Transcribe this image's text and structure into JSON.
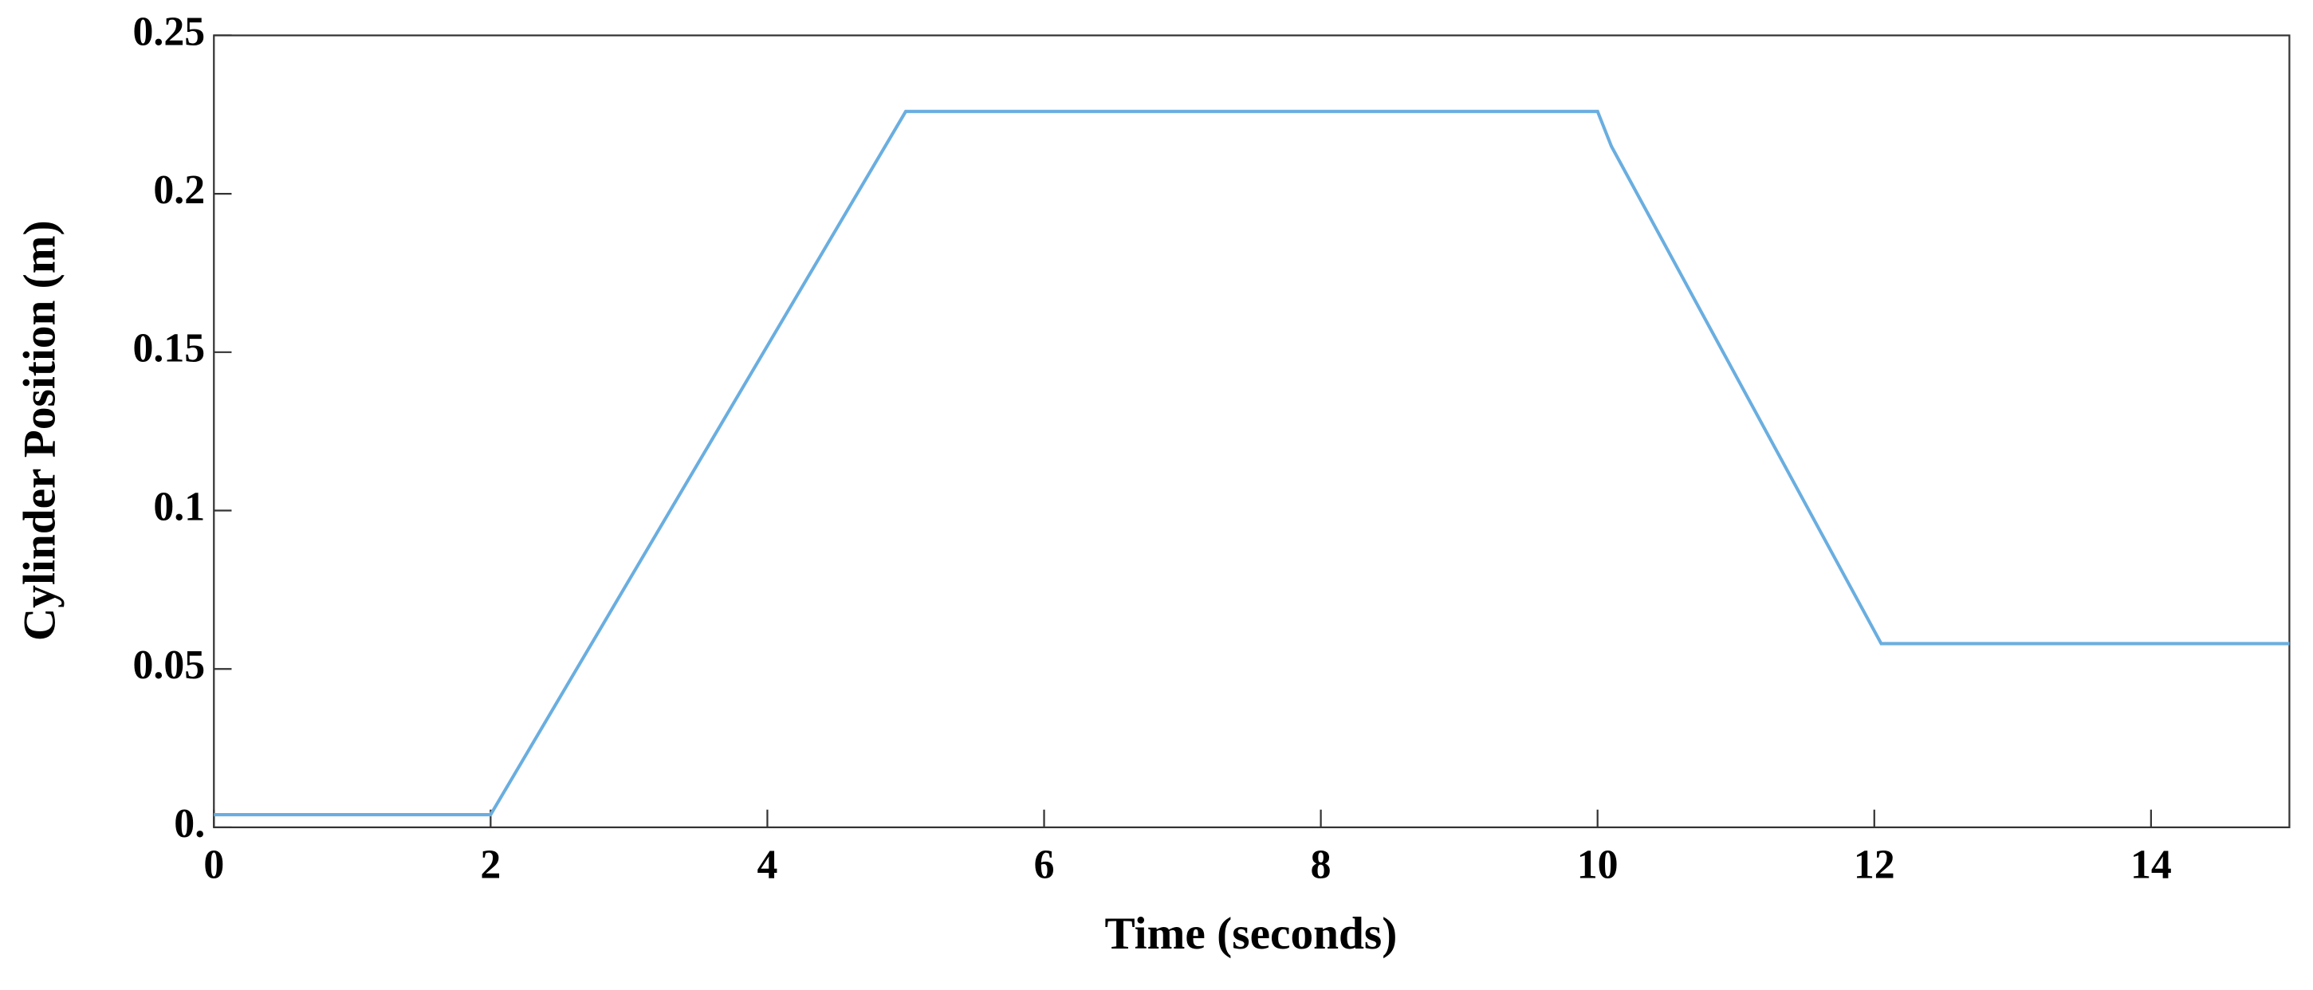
{
  "chart_data": {
    "type": "line",
    "xlabel": "Time (seconds)",
    "ylabel": "Cylinder Position (m)",
    "x": [
      0,
      2,
      5,
      10,
      10.1,
      12.05,
      15
    ],
    "series": [
      {
        "color": "#6aaee0",
        "values": [
          0.004,
          0.004,
          0.226,
          0.226,
          0.215,
          0.058,
          0.058
        ]
      }
    ],
    "xlim": [
      0,
      15
    ],
    "xticks": [
      0,
      2,
      4,
      6,
      8,
      10,
      12,
      14
    ],
    "ylim": [
      0,
      0.25
    ],
    "yticks": [
      {
        "value": 0,
        "label": "0."
      },
      0.05,
      0.1,
      0.15,
      0.2,
      0.25
    ]
  }
}
